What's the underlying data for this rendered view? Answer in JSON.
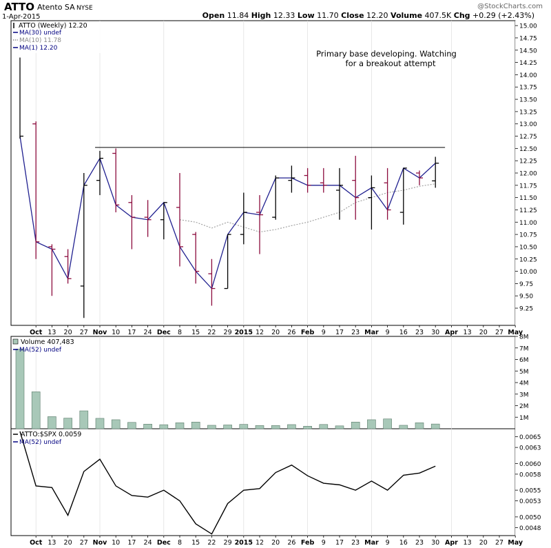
{
  "header": {
    "symbol": "ATTO",
    "company": "Atento SA",
    "exchange": "NYSE",
    "date": "1-Apr-2015",
    "watermark": "@StockCharts.com",
    "quote": [
      {
        "label": "Open",
        "value": "11.84"
      },
      {
        "label": "High",
        "value": "12.33"
      },
      {
        "label": "Low",
        "value": "11.70"
      },
      {
        "label": "Close",
        "value": "12.20"
      },
      {
        "label": "Volume",
        "value": "407.5K"
      },
      {
        "label": "Chg",
        "value": "+0.29 (+2.43%)"
      }
    ]
  },
  "legend": {
    "price": [
      {
        "text": "ATTO (Weekly) 12.20",
        "color": "#000000",
        "style": "bar"
      },
      {
        "text": "MA(30) undef",
        "color": "#000080",
        "style": "solid"
      },
      {
        "text": "MA(10) 11.78",
        "color": "#888888",
        "style": "dotted"
      },
      {
        "text": "MA(1) 12.20",
        "color": "#000080",
        "style": "solid"
      }
    ],
    "volume": [
      {
        "text": "Volume 407,483",
        "color": "#000000",
        "style": "box"
      },
      {
        "text": "MA(52) undef",
        "color": "#000080",
        "style": "solid"
      }
    ],
    "ratio": [
      {
        "text": "ATTO:$SPX 0.0059",
        "color": "#000000",
        "style": "solid"
      },
      {
        "text": "MA(52) undef",
        "color": "#000080",
        "style": "solid"
      }
    ]
  },
  "annotation": {
    "lines": [
      "Primary base developing. Watching",
      "for a breakout attempt"
    ],
    "resistance_level": 12.52
  },
  "colors": {
    "up": "#000000",
    "down": "#8b0a3c",
    "ma1": "#1f1f8f",
    "ma10": "#9a9a9a",
    "volume_fill": "#a8c8b8",
    "volume_stroke": "#5a7a6a",
    "grid": "#dddddd"
  },
  "chart_data": [
    {
      "type": "ohlc",
      "title": "ATTO (Weekly)",
      "x_labels": [
        {
          "w": 1,
          "label": "Oct"
        },
        {
          "w": 2,
          "label": "13"
        },
        {
          "w": 3,
          "label": "20"
        },
        {
          "w": 4,
          "label": "27"
        },
        {
          "w": 5,
          "label": "Nov"
        },
        {
          "w": 6,
          "label": "10"
        },
        {
          "w": 7,
          "label": "17"
        },
        {
          "w": 8,
          "label": "24"
        },
        {
          "w": 9,
          "label": "Dec"
        },
        {
          "w": 10,
          "label": "8"
        },
        {
          "w": 11,
          "label": "15"
        },
        {
          "w": 12,
          "label": "22"
        },
        {
          "w": 13,
          "label": "29"
        },
        {
          "w": 14,
          "label": "2015"
        },
        {
          "w": 15,
          "label": "12"
        },
        {
          "w": 16,
          "label": "20"
        },
        {
          "w": 17,
          "label": "26"
        },
        {
          "w": 18,
          "label": "Feb"
        },
        {
          "w": 19,
          "label": "9"
        },
        {
          "w": 20,
          "label": "17"
        },
        {
          "w": 21,
          "label": "23"
        },
        {
          "w": 22,
          "label": "Mar"
        },
        {
          "w": 23,
          "label": "9"
        },
        {
          "w": 24,
          "label": "16"
        },
        {
          "w": 25,
          "label": "23"
        },
        {
          "w": 26,
          "label": "30"
        },
        {
          "w": 27,
          "label": "Apr"
        },
        {
          "w": 28,
          "label": "13"
        },
        {
          "w": 29,
          "label": "20"
        },
        {
          "w": 30,
          "label": "27"
        },
        {
          "w": 31,
          "label": "May"
        }
      ],
      "bold_labels": [
        "Oct",
        "Nov",
        "Dec",
        "2015",
        "Feb",
        "Mar",
        "Apr",
        "May"
      ],
      "x_range": [
        0,
        31
      ],
      "y_range": [
        8.9,
        15.1
      ],
      "y_ticks": [
        9.25,
        9.5,
        9.75,
        10.0,
        10.25,
        10.5,
        10.75,
        11.0,
        11.25,
        11.5,
        11.75,
        12.0,
        12.25,
        12.5,
        12.75,
        13.0,
        13.25,
        13.5,
        13.75,
        14.0,
        14.25,
        14.5,
        14.75,
        15.0
      ],
      "y_tick_labels": [
        "9.25",
        "9.50",
        "9.75",
        "10.00",
        "10.25",
        "10.50",
        "10.75",
        "11.00",
        "11.25",
        "11.50",
        "11.75",
        "12.00",
        "12.25",
        "12.50",
        "12.75",
        "13.00",
        "13.25",
        "13.50",
        "13.75",
        "14.00",
        "14.25",
        "14.50",
        "14.75",
        "15.00"
      ],
      "bars": [
        {
          "w": 0,
          "o": null,
          "h": 14.35,
          "l": 12.7,
          "c": 12.75,
          "dir": "up"
        },
        {
          "w": 1,
          "o": 13.0,
          "h": 13.05,
          "l": 10.25,
          "c": 10.6,
          "dir": "down"
        },
        {
          "w": 2,
          "o": 10.5,
          "h": 10.55,
          "l": 9.5,
          "c": 10.45,
          "dir": "down"
        },
        {
          "w": 3,
          "o": 10.3,
          "h": 10.45,
          "l": 9.75,
          "c": 9.85,
          "dir": "down"
        },
        {
          "w": 4,
          "o": 9.7,
          "h": 12.0,
          "l": 9.05,
          "c": 11.75,
          "dir": "up"
        },
        {
          "w": 5,
          "o": 11.85,
          "h": 12.45,
          "l": 11.55,
          "c": 12.3,
          "dir": "up"
        },
        {
          "w": 6,
          "o": 12.4,
          "h": 12.5,
          "l": 11.2,
          "c": 11.35,
          "dir": "down"
        },
        {
          "w": 7,
          "o": 11.4,
          "h": 11.55,
          "l": 10.45,
          "c": 11.1,
          "dir": "down"
        },
        {
          "w": 8,
          "o": 11.1,
          "h": 11.45,
          "l": 10.7,
          "c": 11.05,
          "dir": "down"
        },
        {
          "w": 9,
          "o": 11.05,
          "h": 11.4,
          "l": 10.65,
          "c": 11.4,
          "dir": "up"
        },
        {
          "w": 10,
          "o": 11.3,
          "h": 12.0,
          "l": 10.1,
          "c": 10.5,
          "dir": "down"
        },
        {
          "w": 11,
          "o": 10.75,
          "h": 10.8,
          "l": 9.75,
          "c": 10.0,
          "dir": "down"
        },
        {
          "w": 12,
          "o": 9.95,
          "h": 10.25,
          "l": 9.3,
          "c": 9.65,
          "dir": "down"
        },
        {
          "w": 13,
          "o": 9.65,
          "h": 10.75,
          "l": 9.65,
          "c": 10.75,
          "dir": "up"
        },
        {
          "w": 14,
          "o": 10.75,
          "h": 11.6,
          "l": 10.55,
          "c": 11.2,
          "dir": "up"
        },
        {
          "w": 15,
          "o": 11.2,
          "h": 11.55,
          "l": 10.35,
          "c": 11.15,
          "dir": "down"
        },
        {
          "w": 16,
          "o": 11.1,
          "h": 11.95,
          "l": 11.05,
          "c": 11.9,
          "dir": "up"
        },
        {
          "w": 17,
          "o": 11.85,
          "h": 12.15,
          "l": 11.6,
          "c": 11.9,
          "dir": "up"
        },
        {
          "w": 18,
          "o": 11.95,
          "h": 12.1,
          "l": 11.6,
          "c": 11.75,
          "dir": "down"
        },
        {
          "w": 19,
          "o": 11.8,
          "h": 12.1,
          "l": 11.6,
          "c": 11.75,
          "dir": "down"
        },
        {
          "w": 20,
          "o": 11.65,
          "h": 12.1,
          "l": 11.05,
          "c": 11.75,
          "dir": "up"
        },
        {
          "w": 21,
          "o": 11.85,
          "h": 12.35,
          "l": 11.05,
          "c": 11.5,
          "dir": "down"
        },
        {
          "w": 22,
          "o": 11.5,
          "h": 11.95,
          "l": 10.85,
          "c": 11.7,
          "dir": "up"
        },
        {
          "w": 23,
          "o": 11.8,
          "h": 12.1,
          "l": 11.05,
          "c": 11.25,
          "dir": "down"
        },
        {
          "w": 24,
          "o": 11.2,
          "h": 12.1,
          "l": 10.95,
          "c": 12.1,
          "dir": "up"
        },
        {
          "w": 25,
          "o": 12.0,
          "h": 12.05,
          "l": 11.75,
          "c": 11.9,
          "dir": "down"
        },
        {
          "w": 26,
          "o": 11.84,
          "h": 12.33,
          "l": 11.7,
          "c": 12.2,
          "dir": "up"
        }
      ],
      "ma1": [
        12.75,
        10.6,
        10.45,
        9.85,
        11.75,
        12.3,
        11.35,
        11.1,
        11.05,
        11.4,
        10.5,
        10.0,
        9.65,
        10.75,
        11.2,
        11.15,
        11.9,
        11.9,
        11.75,
        11.75,
        11.75,
        11.5,
        11.7,
        11.25,
        12.1,
        11.9,
        12.2
      ],
      "ma10": [
        {
          "w": 10,
          "v": 11.05
        },
        {
          "w": 11,
          "v": 11.0
        },
        {
          "w": 12,
          "v": 10.88
        },
        {
          "w": 13,
          "v": 11.0
        },
        {
          "w": 14,
          "v": 10.9
        },
        {
          "w": 15,
          "v": 10.8
        },
        {
          "w": 16,
          "v": 10.85
        },
        {
          "w": 17,
          "v": 10.93
        },
        {
          "w": 18,
          "v": 11.0
        },
        {
          "w": 19,
          "v": 11.1
        },
        {
          "w": 20,
          "v": 11.2
        },
        {
          "w": 21,
          "v": 11.4
        },
        {
          "w": 22,
          "v": 11.5
        },
        {
          "w": 23,
          "v": 11.6
        },
        {
          "w": 24,
          "v": 11.65
        },
        {
          "w": 25,
          "v": 11.73
        },
        {
          "w": 26,
          "v": 11.78
        }
      ]
    },
    {
      "type": "bar",
      "title": "Volume",
      "y_range": [
        0,
        8
      ],
      "y_ticks": [
        1,
        2,
        3,
        4,
        5,
        6,
        7,
        8
      ],
      "y_tick_labels": [
        "1M",
        "2M",
        "3M",
        "4M",
        "5M",
        "6M",
        "7M",
        "8M"
      ],
      "values_millions": [
        6.9,
        3.2,
        1.05,
        0.92,
        1.55,
        0.9,
        0.78,
        0.55,
        0.4,
        0.35,
        0.52,
        0.58,
        0.3,
        0.33,
        0.38,
        0.28,
        0.28,
        0.36,
        0.22,
        0.37,
        0.25,
        0.58,
        0.78,
        0.85,
        0.3,
        0.52,
        0.41
      ]
    },
    {
      "type": "line",
      "title": "ATTO:$SPX",
      "y_range": [
        0.00465,
        0.00665
      ],
      "y_ticks": [
        0.0048,
        0.005,
        0.0053,
        0.0055,
        0.0058,
        0.006,
        0.0063,
        0.0065
      ],
      "y_tick_labels": [
        "0.0048",
        "0.0050",
        "0.0053",
        "0.0055",
        "0.0058",
        "0.0060",
        "0.0063",
        "0.0065"
      ],
      "values": [
        0.0066,
        0.00558,
        0.00555,
        0.00503,
        0.00585,
        0.00608,
        0.00558,
        0.0054,
        0.00537,
        0.0055,
        0.0053,
        0.00487,
        0.00468,
        0.00525,
        0.0055,
        0.00553,
        0.00583,
        0.00597,
        0.00577,
        0.00563,
        0.0056,
        0.0055,
        0.00567,
        0.0055,
        0.00578,
        0.00582,
        0.00595
      ]
    }
  ]
}
